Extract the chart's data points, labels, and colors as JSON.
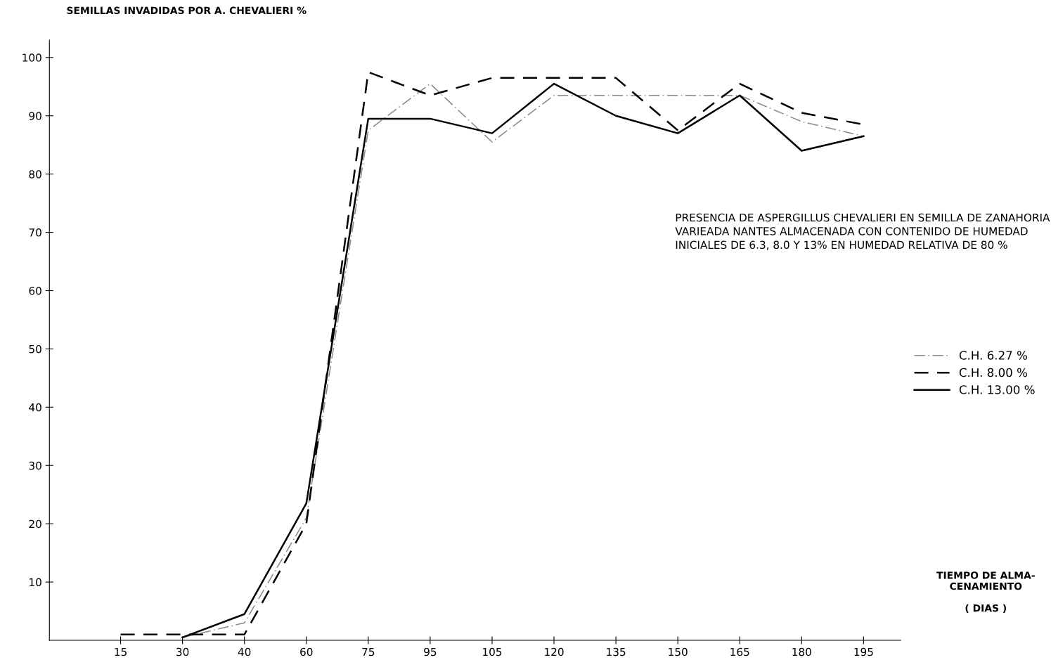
{
  "chart_data": {
    "type": "line",
    "ylabel": "SEMILLAS INVADIDAS POR A. CHEVALIERI %",
    "xlabel": "TIEMPO DE ALMA-\nCENAMIENTO\n\n( DIAS )",
    "categories": [
      "15",
      "30",
      "40",
      "60",
      "75",
      "95",
      "105",
      "120",
      "135",
      "150",
      "165",
      "180",
      "195"
    ],
    "ylim": [
      0,
      103
    ],
    "yticks": [
      10,
      20,
      30,
      40,
      50,
      60,
      70,
      80,
      90,
      100
    ],
    "grid": false,
    "legend": "right",
    "marker": "none",
    "series": [
      {
        "name": "C.H. 6.27 %",
        "color": "#8a8a8a",
        "line_style": "dashdot",
        "values": [
          null,
          0.5,
          3,
          21,
          87.5,
          95.5,
          85.5,
          93.5,
          93.5,
          93.5,
          93.5,
          89,
          86.5
        ]
      },
      {
        "name": "C.H. 8.00 %",
        "color": "#000000",
        "line_style": "dashed",
        "values": [
          1,
          1,
          1,
          20,
          97.5,
          93.5,
          96.5,
          96.5,
          96.5,
          87.5,
          95.5,
          90.5,
          88.5
        ]
      },
      {
        "name": "C.H. 13.00 %",
        "color": "#000000",
        "line_style": "solid",
        "values": [
          null,
          0.5,
          4.5,
          23.5,
          89.5,
          89.5,
          87,
          95.5,
          90,
          87,
          93.5,
          84,
          86.5
        ]
      }
    ],
    "annotations": [
      "PRESENCIA DE ASPERGILLUS CHEVALIERI EN SEMILLA DE ZANAHORIA\nVARIEADA NANTES ALMACENADA CON CONTENIDO DE HUMEDAD\nINICIALES DE 6.3, 8.0 Y 13% EN HUMEDAD RELATIVA DE 80 %"
    ]
  }
}
